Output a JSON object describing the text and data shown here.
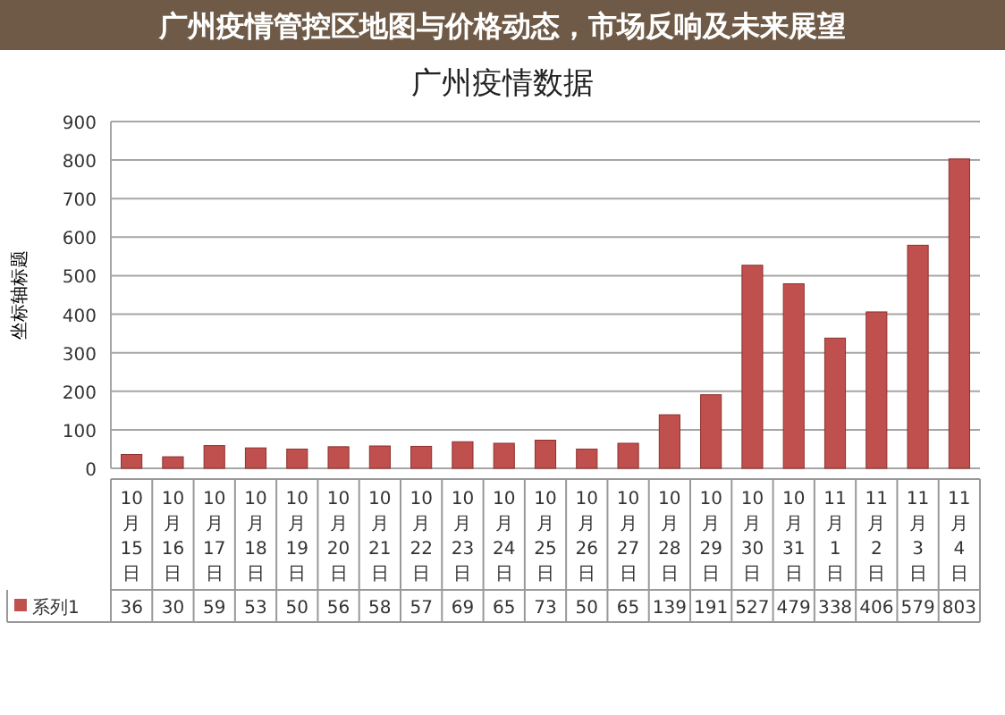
{
  "chart_data": {
    "type": "bar",
    "title": "广州疫情数据",
    "ylabel": "坐标轴标题",
    "annotations": [
      "广州疫情管控区地图与价格动态，市场反响及未来展望"
    ],
    "categories": [
      "10月15日",
      "10月16日",
      "10月17日",
      "10月18日",
      "10月19日",
      "10月20日",
      "10月21日",
      "10月22日",
      "10月23日",
      "10月24日",
      "10月25日",
      "10月26日",
      "10月27日",
      "10月28日",
      "10月29日",
      "10月30日",
      "10月31日",
      "11月1日",
      "11月2日",
      "11月3日",
      "11月4日"
    ],
    "series": [
      {
        "name": "系列1",
        "color": "#c0504d",
        "values": [
          36,
          30,
          59,
          53,
          50,
          56,
          58,
          57,
          69,
          65,
          73,
          50,
          65,
          139,
          191,
          527,
          479,
          338,
          406,
          579,
          803
        ]
      }
    ],
    "ylim": [
      0,
      900
    ],
    "yticks": [
      0,
      100,
      200,
      300,
      400,
      500,
      600,
      700,
      800,
      900
    ],
    "grid": "y",
    "legend": "bottom",
    "data_labels": true
  }
}
